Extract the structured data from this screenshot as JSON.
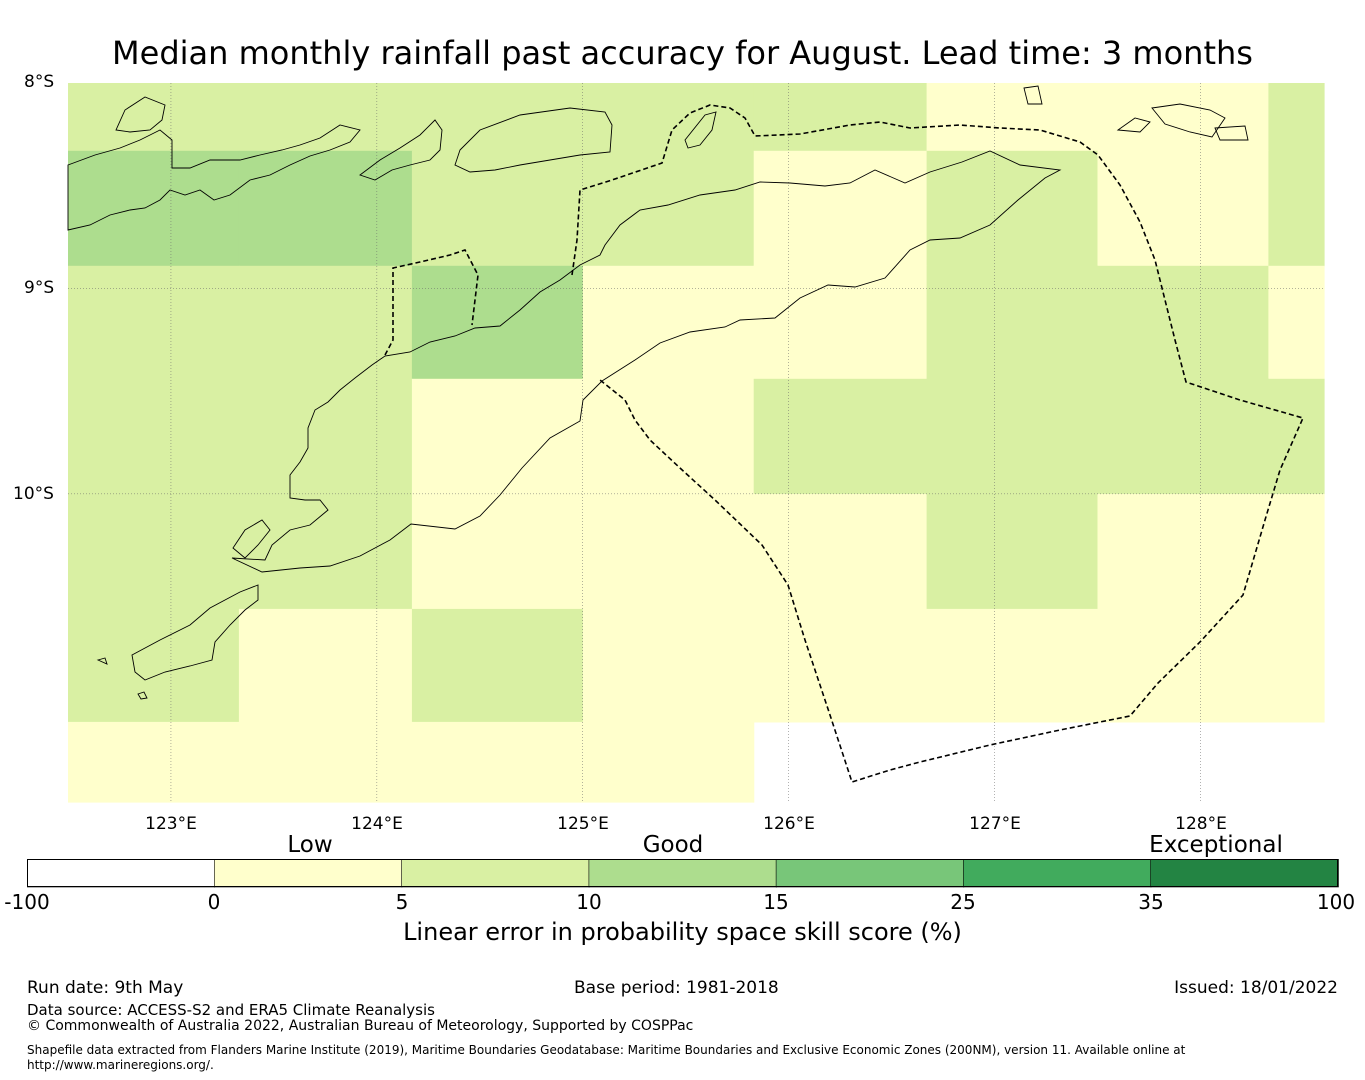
{
  "title": "Median monthly rainfall past accuracy for August. Lead time: 3 months",
  "map": {
    "lat_labels": [
      "8°S",
      "9°S",
      "10°S"
    ],
    "lon_labels": [
      "123°E",
      "124°E",
      "125°E",
      "126°E",
      "127°E",
      "128°E"
    ],
    "lon_range": [
      122.5,
      128.6
    ],
    "lat_range": [
      -8.0,
      -11.5
    ],
    "grid_lons": [
      122.5,
      123.33,
      124.17,
      125.0,
      125.83,
      126.67,
      127.5,
      128.33,
      128.6
    ],
    "grid_lats": [
      -8.0,
      -8.33,
      -8.89,
      -9.44,
      -10.0,
      -10.56,
      -11.11,
      -11.5
    ],
    "skill_grid_categories": [
      [
        "5-10",
        "5-10",
        "5-10",
        "5-10",
        "5-10",
        "0-5",
        "0-5",
        "5-10"
      ],
      [
        "10-15",
        "10-15",
        "5-10",
        "5-10",
        "0-5",
        "5-10",
        "0-5",
        "5-10"
      ],
      [
        "5-10",
        "5-10",
        "10-15",
        "0-5",
        "0-5",
        "5-10",
        "5-10",
        "0-5"
      ],
      [
        "5-10",
        "5-10",
        "0-5",
        "0-5",
        "5-10",
        "5-10",
        "5-10",
        "5-10"
      ],
      [
        "5-10",
        "5-10",
        "0-5",
        "0-5",
        "0-5",
        "5-10",
        "0-5",
        "0-5"
      ],
      [
        "5-10",
        "0-5",
        "5-10",
        "0-5",
        "0-5",
        "0-5",
        "0-5",
        "0-5"
      ],
      [
        "0-5",
        "0-5",
        "0-5",
        "0-5",
        "none",
        "none",
        "none",
        "none"
      ]
    ]
  },
  "colorbar": {
    "categories": [
      "Low",
      "Good",
      "Exceptional"
    ],
    "ticks": [
      "-100",
      "0",
      "5",
      "10",
      "15",
      "25",
      "35",
      "100"
    ],
    "colors": [
      "#ffffff",
      "#ffffcc",
      "#d9f0a3",
      "#addd8e",
      "#78c679",
      "#41ab5d",
      "#238443"
    ],
    "label": "Linear error in probability space skill score (%)"
  },
  "footer": {
    "run_date": "Run date: 9th May",
    "base_period": "Base period: 1981-2018",
    "issued": "Issued: 18/01/2022",
    "data_source": "Data source: ACCESS-S2 and ERA5 Climate Reanalysis",
    "copyright": "© Commonwealth of Australia 2022, Australian Bureau of Meteorology, Supported by COSPPac",
    "shapefile_line1": "Shapefile data extracted from Flanders Marine Institute (2019), Maritime Boundaries Geodatabase: Maritime Boundaries and Exclusive Economic Zones (200NM), version 11. Available online at",
    "shapefile_line2": "http://www.marineregions.org/."
  }
}
